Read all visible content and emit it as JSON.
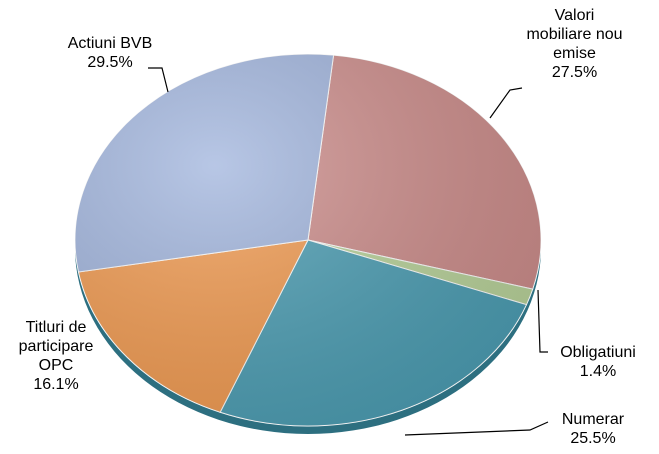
{
  "chart_data": {
    "type": "pie",
    "categories": [
      "Valori mobiliare nou emise",
      "Obligatiuni",
      "Numerar",
      "Titluri de participare OPC",
      "Actiuni BVB"
    ],
    "values": [
      27.5,
      1.4,
      25.5,
      16.1,
      29.5
    ],
    "value_labels": [
      "27.5%",
      "1.4%",
      "25.5%",
      "16.1%",
      "29.5%"
    ],
    "colors": [
      "#cd8c8a",
      "#b9d39a",
      "#4a9db3",
      "#f29a4f",
      "#a0b4dd"
    ]
  }
}
